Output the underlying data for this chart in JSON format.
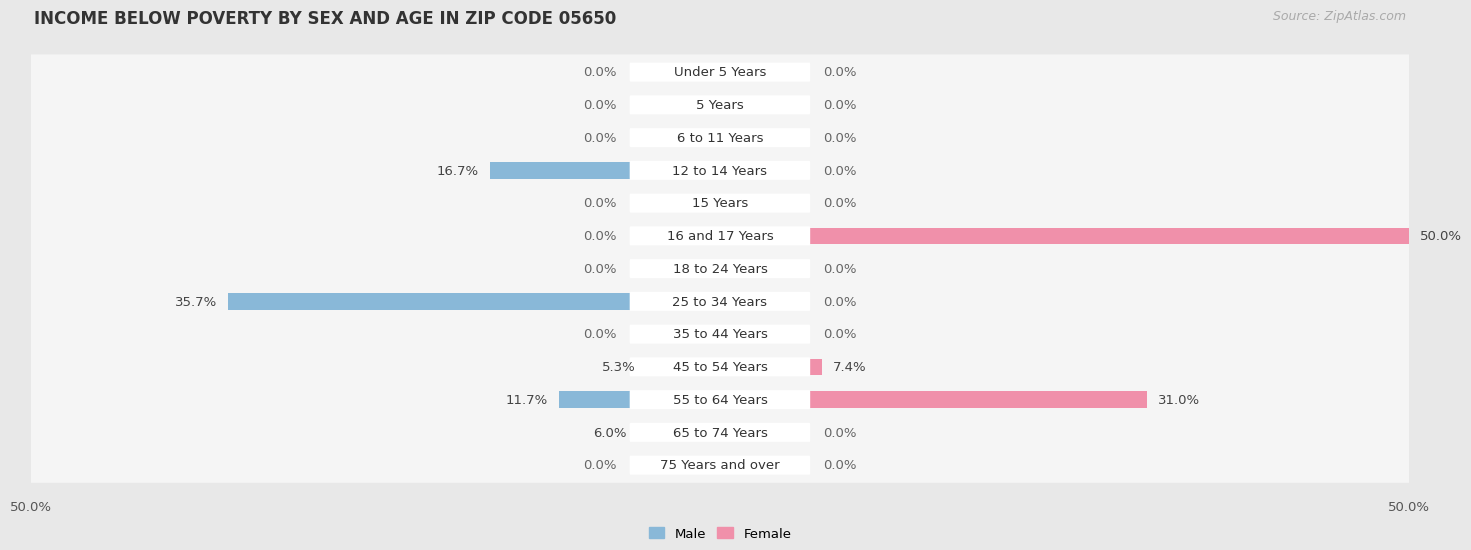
{
  "title": "INCOME BELOW POVERTY BY SEX AND AGE IN ZIP CODE 05650",
  "source": "Source: ZipAtlas.com",
  "categories": [
    "Under 5 Years",
    "5 Years",
    "6 to 11 Years",
    "12 to 14 Years",
    "15 Years",
    "16 and 17 Years",
    "18 to 24 Years",
    "25 to 34 Years",
    "35 to 44 Years",
    "45 to 54 Years",
    "55 to 64 Years",
    "65 to 74 Years",
    "75 Years and over"
  ],
  "male": [
    0.0,
    0.0,
    0.0,
    16.7,
    0.0,
    0.0,
    0.0,
    35.7,
    0.0,
    5.3,
    11.7,
    6.0,
    0.0
  ],
  "female": [
    0.0,
    0.0,
    0.0,
    0.0,
    0.0,
    50.0,
    0.0,
    0.0,
    0.0,
    7.4,
    31.0,
    0.0,
    0.0
  ],
  "male_color": "#89b8d8",
  "female_color": "#f090aa",
  "male_label": "Male",
  "female_label": "Female",
  "xlim": 50.0,
  "bg_color": "#e8e8e8",
  "row_color": "#f5f5f5",
  "title_fontsize": 12,
  "source_fontsize": 9,
  "label_fontsize": 9.5,
  "tick_fontsize": 9.5,
  "cat_fontsize": 9.5
}
